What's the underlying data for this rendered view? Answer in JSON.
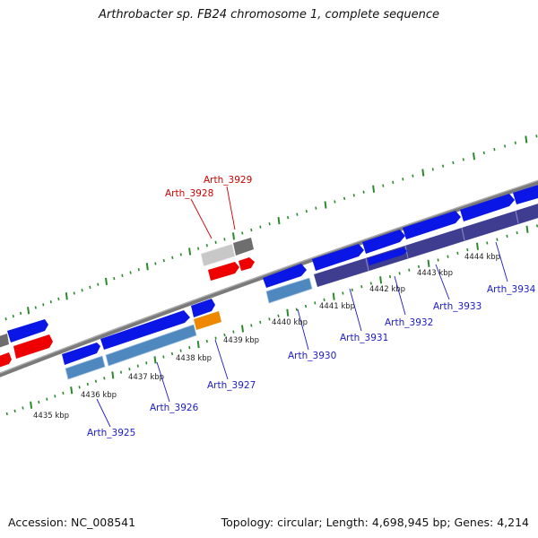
{
  "title": "Arthrobacter sp. FB24 chromosome 1, complete sequence",
  "footer": {
    "accession": "Accession: NC_008541",
    "summary": "Topology: circular; Length: 4,698,945 bp; Genes: 4,214"
  },
  "colors": {
    "backbone": "#808080",
    "tick": "#2a8a2a",
    "forward_cds": "#0a16e6",
    "reverse_cds": "#4f87bf",
    "operon": "#3f3d8f",
    "red_gene": "#ee0000",
    "orange_gene": "#ee8800",
    "gray_gene": "#bdbdbd",
    "darkgray_gene": "#6e6e6e",
    "label_blue": "#1a1acc",
    "label_red": "#cc0000"
  },
  "kbp_labels": [
    "4435 kbp",
    "4436 kbp",
    "4437 kbp",
    "4438 kbp",
    "4439 kbp",
    "4440 kbp",
    "4441 kbp",
    "4442 kbp",
    "4443 kbp",
    "4444 kbp"
  ],
  "gene_labels": [
    {
      "name": "Arth_3928",
      "color": "red"
    },
    {
      "name": "Arth_3929",
      "color": "red"
    },
    {
      "name": "Arth_3925",
      "color": "blue"
    },
    {
      "name": "Arth_3926",
      "color": "blue"
    },
    {
      "name": "Arth_3927",
      "color": "blue"
    },
    {
      "name": "Arth_3930",
      "color": "blue"
    },
    {
      "name": "Arth_3931",
      "color": "blue"
    },
    {
      "name": "Arth_3932",
      "color": "blue"
    },
    {
      "name": "Arth_3933",
      "color": "blue"
    },
    {
      "name": "Arth_3934",
      "color": "blue"
    }
  ]
}
